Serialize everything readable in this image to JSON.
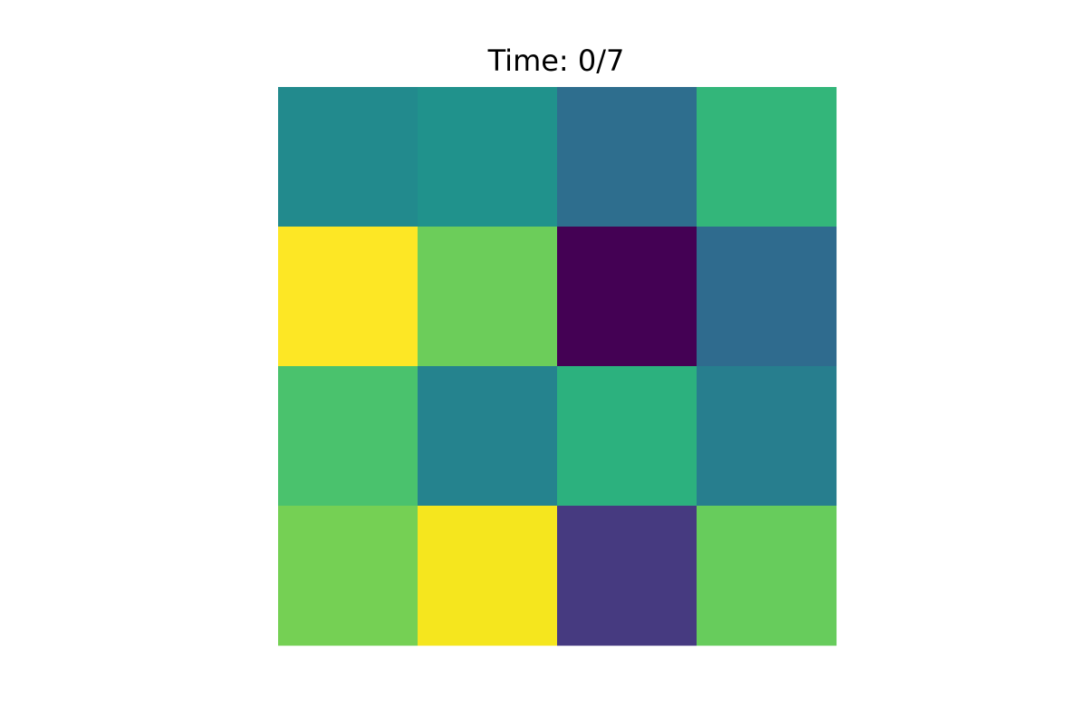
{
  "chart_data": {
    "type": "heatmap",
    "title": "Time: 0/7",
    "rows": 4,
    "cols": 4,
    "colormap": "viridis",
    "value_range": [
      0,
      1
    ],
    "values": [
      [
        0.45,
        0.52,
        0.32,
        0.68
      ],
      [
        0.99,
        0.78,
        0.0,
        0.31
      ],
      [
        0.71,
        0.42,
        0.62,
        0.42
      ],
      [
        0.8,
        0.97,
        0.14,
        0.78
      ]
    ],
    "cell_colors": [
      [
        "#228a8d",
        "#20928c",
        "#2e6e8e",
        "#33b67a"
      ],
      [
        "#fde725",
        "#6ccd5a",
        "#440154",
        "#2f6b8e"
      ],
      [
        "#4ac26d",
        "#25838e",
        "#2cb17e",
        "#277e8e"
      ],
      [
        "#75d054",
        "#f5e61e",
        "#463a80",
        "#67cc5c"
      ]
    ],
    "grid": false,
    "axes_visible": false
  }
}
